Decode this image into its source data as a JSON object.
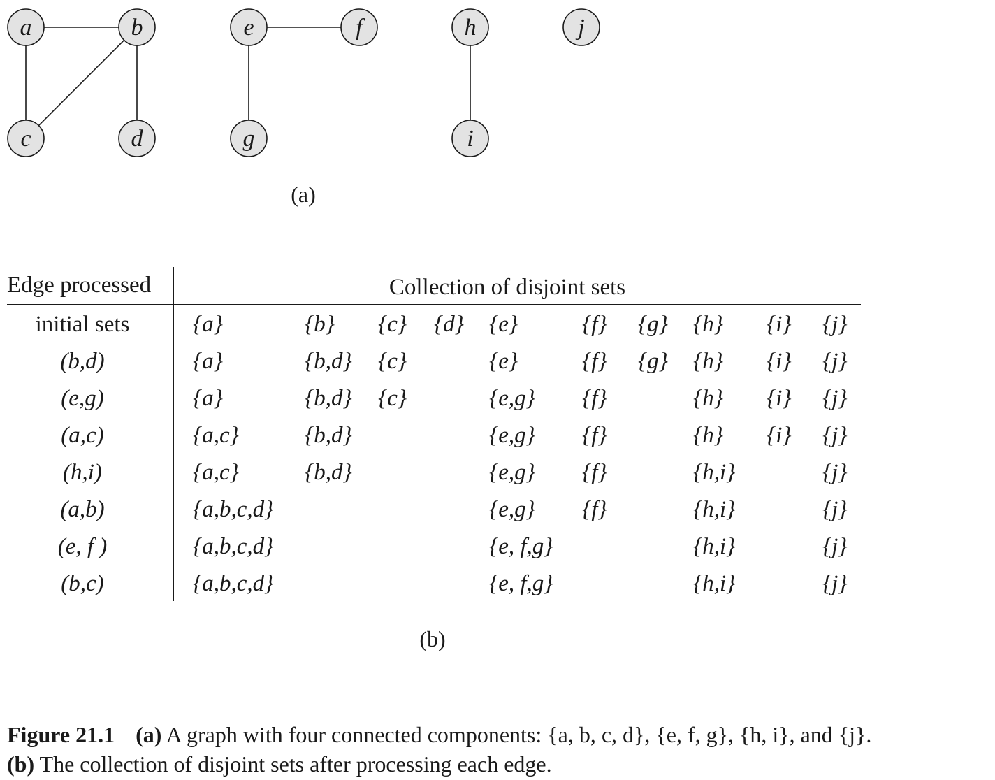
{
  "graph": {
    "nodes": [
      {
        "id": "a",
        "label": "a"
      },
      {
        "id": "b",
        "label": "b"
      },
      {
        "id": "c",
        "label": "c"
      },
      {
        "id": "d",
        "label": "d"
      },
      {
        "id": "e",
        "label": "e"
      },
      {
        "id": "f",
        "label": "f"
      },
      {
        "id": "g",
        "label": "g"
      },
      {
        "id": "h",
        "label": "h"
      },
      {
        "id": "i",
        "label": "i"
      },
      {
        "id": "j",
        "label": "j"
      }
    ],
    "edges": [
      [
        "a",
        "b"
      ],
      [
        "a",
        "c"
      ],
      [
        "b",
        "c"
      ],
      [
        "b",
        "d"
      ],
      [
        "e",
        "f"
      ],
      [
        "e",
        "g"
      ],
      [
        "h",
        "i"
      ]
    ],
    "label": "(a)"
  },
  "table": {
    "header_left": "Edge processed",
    "header_right": "Collection of disjoint sets",
    "rows": [
      {
        "edge": "initial sets",
        "italic": false,
        "sets": [
          "{a}",
          "{b}",
          "{c}",
          "{d}",
          "{e}",
          "{f}",
          "{g}",
          "{h}",
          "{i}",
          "{j}"
        ]
      },
      {
        "edge": "(b,d)",
        "italic": true,
        "sets": [
          "{a}",
          "{b,d}",
          "{c}",
          "",
          "{e}",
          "{f}",
          "{g}",
          "{h}",
          "{i}",
          "{j}"
        ]
      },
      {
        "edge": "(e,g)",
        "italic": true,
        "sets": [
          "{a}",
          "{b,d}",
          "{c}",
          "",
          "{e,g}",
          "{f}",
          "",
          "{h}",
          "{i}",
          "{j}"
        ]
      },
      {
        "edge": "(a,c)",
        "italic": true,
        "sets": [
          "{a,c}",
          "{b,d}",
          "",
          "",
          "{e,g}",
          "{f}",
          "",
          "{h}",
          "{i}",
          "{j}"
        ]
      },
      {
        "edge": "(h,i)",
        "italic": true,
        "sets": [
          "{a,c}",
          "{b,d}",
          "",
          "",
          "{e,g}",
          "{f}",
          "",
          "{h,i}",
          "",
          "{j}"
        ]
      },
      {
        "edge": "(a,b)",
        "italic": true,
        "sets": [
          "{a,b,c,d}",
          "",
          "",
          "",
          "{e,g}",
          "{f}",
          "",
          "{h,i}",
          "",
          "{j}"
        ]
      },
      {
        "edge": "(e, f )",
        "italic": true,
        "sets": [
          "{a,b,c,d}",
          "",
          "",
          "",
          "{e, f,g}",
          "",
          "",
          "{h,i}",
          "",
          "{j}"
        ]
      },
      {
        "edge": "(b,c)",
        "italic": true,
        "sets": [
          "{a,b,c,d}",
          "",
          "",
          "",
          "{e, f,g}",
          "",
          "",
          "{h,i}",
          "",
          "{j}"
        ]
      }
    ],
    "label": "(b)"
  },
  "caption": {
    "figure_number": "Figure 21.1",
    "part_a_marker": "(a)",
    "part_a_text": " A graph with four connected components: {a, b, c, d}, {e, f, g}, {h, i}, and {j}.",
    "part_b_marker": "(b)",
    "part_b_text": " The collection of disjoint sets after processing each edge."
  }
}
